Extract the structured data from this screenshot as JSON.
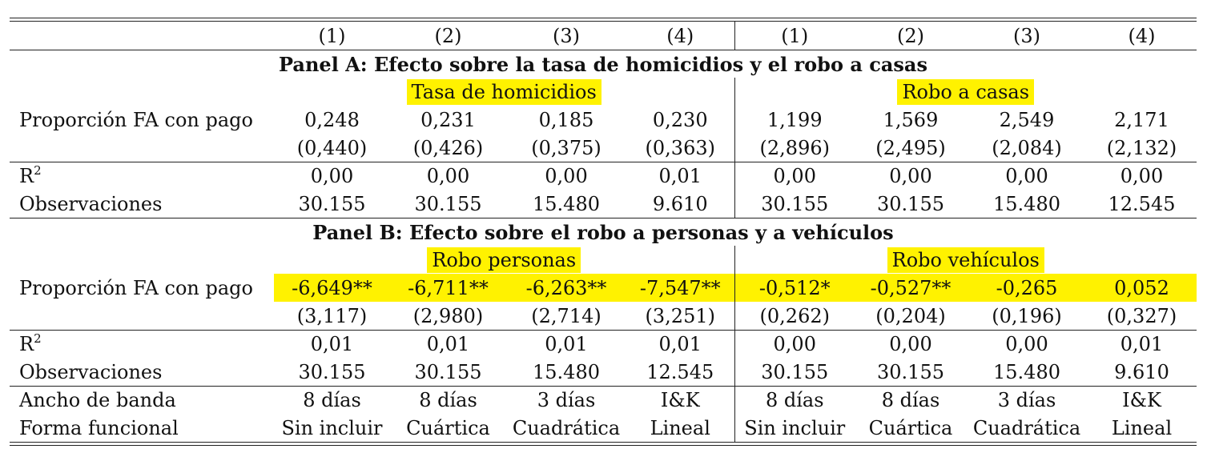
{
  "columns": [
    "(1)",
    "(2)",
    "(3)",
    "(4)",
    "(1)",
    "(2)",
    "(3)",
    "(4)"
  ],
  "panelA": {
    "title": "Panel A: Efecto sobre la tasa de homicidios y el robo a casas",
    "group_left": "Tasa de homicidios",
    "group_right": "Robo a casas",
    "coef_label": "Proporción FA con pago",
    "coef": [
      "0,248",
      "0,231",
      "0,185",
      "0,230",
      "1,199",
      "1,569",
      "2,549",
      "2,171"
    ],
    "se": [
      "(0,440)",
      "(0,426)",
      "(0,375)",
      "(0,363)",
      "(2,896)",
      "(2,495)",
      "(2,084)",
      "(2,132)"
    ],
    "r2_label": "R",
    "r2_sup": "2",
    "r2": [
      "0,00",
      "0,00",
      "0,00",
      "0,01",
      "0,00",
      "0,00",
      "0,00",
      "0,00"
    ],
    "obs_label": "Observaciones",
    "obs": [
      "30.155",
      "30.155",
      "15.480",
      "9.610",
      "30.155",
      "30.155",
      "15.480",
      "12.545"
    ]
  },
  "panelB": {
    "title": "Panel B: Efecto sobre el robo a personas y a vehículos",
    "group_left": "Robo personas",
    "group_right": "Robo vehículos",
    "coef_label": "Proporción FA con pago",
    "coef": [
      "-6,649**",
      "-6,711**",
      "-6,263**",
      "-7,547**",
      "-0,512*",
      "-0,527**",
      "-0,265",
      "0,052"
    ],
    "se": [
      "(3,117)",
      "(2,980)",
      "(2,714)",
      "(3,251)",
      "(0,262)",
      "(0,204)",
      "(0,196)",
      "(0,327)"
    ],
    "r2_label": "R",
    "r2_sup": "2",
    "r2": [
      "0,01",
      "0,01",
      "0,01",
      "0,01",
      "0,00",
      "0,00",
      "0,00",
      "0,01"
    ],
    "obs_label": "Observaciones",
    "obs": [
      "30.155",
      "30.155",
      "15.480",
      "12.545",
      "30.155",
      "30.155",
      "15.480",
      "9.610"
    ]
  },
  "footer": {
    "bandwidth_label": "Ancho de banda",
    "bandwidth": [
      "8 días",
      "8 días",
      "3 días",
      "I&K",
      "8 días",
      "8 días",
      "3 días",
      "I&K"
    ],
    "form_label": "Forma funcional",
    "form": [
      "Sin incluir",
      "Cuártica",
      "Cuadrática",
      "Lineal",
      "Sin incluir",
      "Cuártica",
      "Cuadrática",
      "Lineal"
    ]
  },
  "highlight_color": "#fff200"
}
